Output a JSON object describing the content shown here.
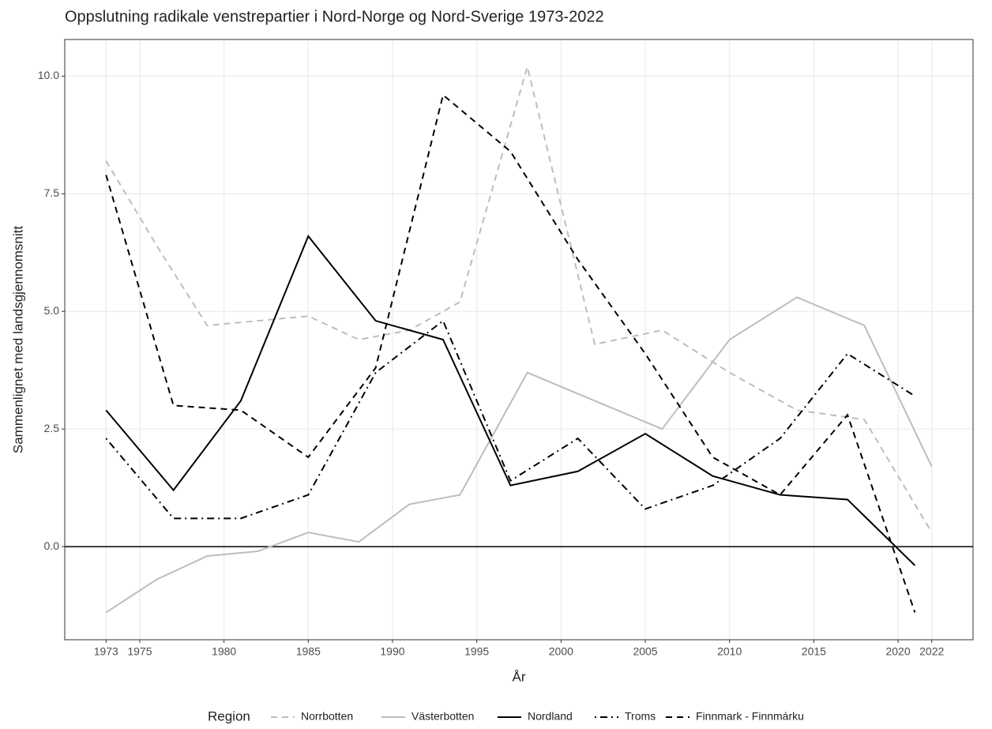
{
  "chart_data": {
    "type": "line",
    "title": "Oppslutning radikale venstrepartier i Nord-Norge og Nord-Sverige 1973-2022",
    "x_label": "År",
    "y_label": "Sammenlignet med landsgjennomsnitt",
    "legend_title": "Region",
    "legend_position": "bottom",
    "grid": true,
    "hline": 0,
    "xlim": [
      1970.55,
      2024.45
    ],
    "ylim": [
      -1.98,
      10.78
    ],
    "xticks": [
      1973,
      1975,
      1980,
      1985,
      1990,
      1995,
      2000,
      2005,
      2010,
      2015,
      2020,
      2022
    ],
    "yticks": [
      {
        "value": 0,
        "label": "0.0"
      },
      {
        "value": 2.5,
        "label": "2.5"
      },
      {
        "value": 5,
        "label": "5.0"
      },
      {
        "value": 7.5,
        "label": "7.5"
      },
      {
        "value": 10,
        "label": "10.0"
      }
    ],
    "series": [
      {
        "name": "Norrbotten",
        "color": "#bdbdbd",
        "dash": "dashed",
        "x": [
          1973,
          1976,
          1979,
          1982,
          1985,
          1988,
          1991,
          1994,
          1998,
          2002,
          2006,
          2010,
          2014,
          2018,
          2022
        ],
        "values": [
          8.2,
          6.4,
          4.7,
          4.8,
          4.9,
          4.4,
          4.6,
          5.2,
          10.2,
          4.3,
          4.6,
          3.7,
          2.9,
          2.7,
          0.3
        ]
      },
      {
        "name": "Västerbotten",
        "color": "#bdbdbd",
        "dash": "solid",
        "x": [
          1973,
          1976,
          1979,
          1982,
          1985,
          1988,
          1991,
          1994,
          1998,
          2002,
          2006,
          2010,
          2014,
          2018,
          2022
        ],
        "values": [
          -1.4,
          -0.7,
          -0.2,
          -0.1,
          0.3,
          0.1,
          0.9,
          1.1,
          3.7,
          3.1,
          2.5,
          4.4,
          5.3,
          4.7,
          1.7
        ]
      },
      {
        "name": "Nordland",
        "color": "#000000",
        "dash": "solid",
        "x": [
          1973,
          1977,
          1981,
          1985,
          1989,
          1993,
          1997,
          2001,
          2005,
          2009,
          2013,
          2017,
          2021
        ],
        "values": [
          2.9,
          1.2,
          3.1,
          6.6,
          4.8,
          4.4,
          1.3,
          1.6,
          2.4,
          1.5,
          1.1,
          1.0,
          -0.4
        ]
      },
      {
        "name": "Troms",
        "color": "#000000",
        "dash": "dotdash",
        "x": [
          1973,
          1977,
          1981,
          1985,
          1989,
          1993,
          1997,
          2001,
          2005,
          2009,
          2013,
          2017,
          2021
        ],
        "values": [
          2.3,
          0.6,
          0.6,
          1.1,
          3.7,
          4.8,
          1.4,
          2.3,
          0.8,
          1.3,
          2.3,
          4.1,
          3.2
        ]
      },
      {
        "name": "Finnmark - Finnmárku",
        "color": "#000000",
        "dash": "dashed",
        "x": [
          1973,
          1977,
          1981,
          1985,
          1989,
          1993,
          1997,
          2001,
          2005,
          2009,
          2013,
          2017,
          2021
        ],
        "values": [
          7.9,
          3.0,
          2.9,
          1.9,
          3.8,
          9.6,
          8.4,
          6.1,
          4.1,
          1.9,
          1.1,
          2.8,
          -1.4
        ]
      }
    ]
  }
}
